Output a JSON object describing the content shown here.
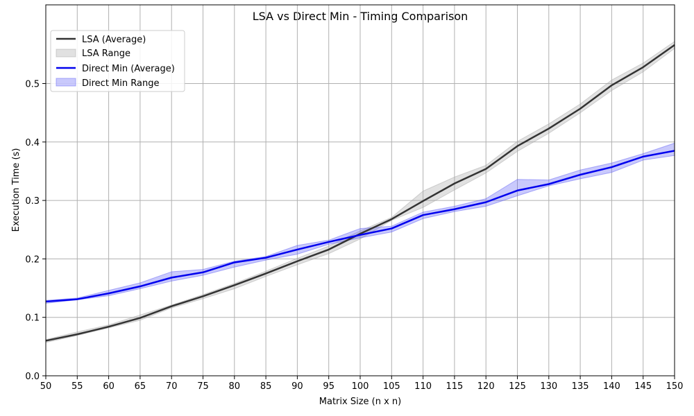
{
  "chart_data": {
    "type": "line",
    "title": "LSA vs Direct Min - Timing Comparison",
    "xlabel": "Matrix Size (n x n)",
    "ylabel": "Execution Time (s)",
    "x": [
      50,
      55,
      60,
      65,
      70,
      75,
      80,
      85,
      90,
      95,
      100,
      105,
      110,
      115,
      120,
      125,
      130,
      135,
      140,
      145,
      150
    ],
    "xlim": [
      50,
      150
    ],
    "ylim": [
      0.0,
      0.6
    ],
    "yticks": [
      "0.0",
      "0.1",
      "0.2",
      "0.3",
      "0.4",
      "0.5"
    ],
    "grid": true,
    "legend_position": "top-left",
    "series": [
      {
        "name": "LSA (Average)",
        "range_name": "LSA Range",
        "color": "#333333",
        "range_color": "#a9a9a9",
        "values": [
          0.06,
          0.071,
          0.084,
          0.099,
          0.119,
          0.136,
          0.155,
          0.175,
          0.196,
          0.216,
          0.243,
          0.268,
          0.299,
          0.329,
          0.354,
          0.393,
          0.423,
          0.457,
          0.497,
          0.528,
          0.566
        ],
        "lower": [
          0.057,
          0.069,
          0.082,
          0.095,
          0.116,
          0.132,
          0.149,
          0.17,
          0.19,
          0.209,
          0.234,
          0.266,
          0.288,
          0.318,
          0.347,
          0.384,
          0.415,
          0.45,
          0.488,
          0.52,
          0.56
        ],
        "upper": [
          0.062,
          0.075,
          0.087,
          0.104,
          0.121,
          0.139,
          0.158,
          0.179,
          0.201,
          0.222,
          0.248,
          0.271,
          0.316,
          0.34,
          0.36,
          0.401,
          0.431,
          0.465,
          0.506,
          0.535,
          0.572
        ]
      },
      {
        "name": "Direct Min (Average)",
        "range_name": "Direct Min Range",
        "color": "#0000ee",
        "range_color": "#6464f5",
        "values": [
          0.127,
          0.131,
          0.141,
          0.153,
          0.168,
          0.177,
          0.194,
          0.202,
          0.216,
          0.229,
          0.241,
          0.252,
          0.275,
          0.285,
          0.297,
          0.317,
          0.328,
          0.344,
          0.357,
          0.375,
          0.385
        ],
        "lower": [
          0.124,
          0.13,
          0.137,
          0.149,
          0.162,
          0.172,
          0.186,
          0.198,
          0.208,
          0.225,
          0.236,
          0.246,
          0.269,
          0.281,
          0.29,
          0.308,
          0.325,
          0.337,
          0.348,
          0.369,
          0.377
        ],
        "upper": [
          0.129,
          0.133,
          0.146,
          0.159,
          0.178,
          0.182,
          0.196,
          0.204,
          0.223,
          0.232,
          0.252,
          0.256,
          0.28,
          0.29,
          0.303,
          0.336,
          0.335,
          0.352,
          0.364,
          0.38,
          0.398
        ]
      }
    ]
  }
}
